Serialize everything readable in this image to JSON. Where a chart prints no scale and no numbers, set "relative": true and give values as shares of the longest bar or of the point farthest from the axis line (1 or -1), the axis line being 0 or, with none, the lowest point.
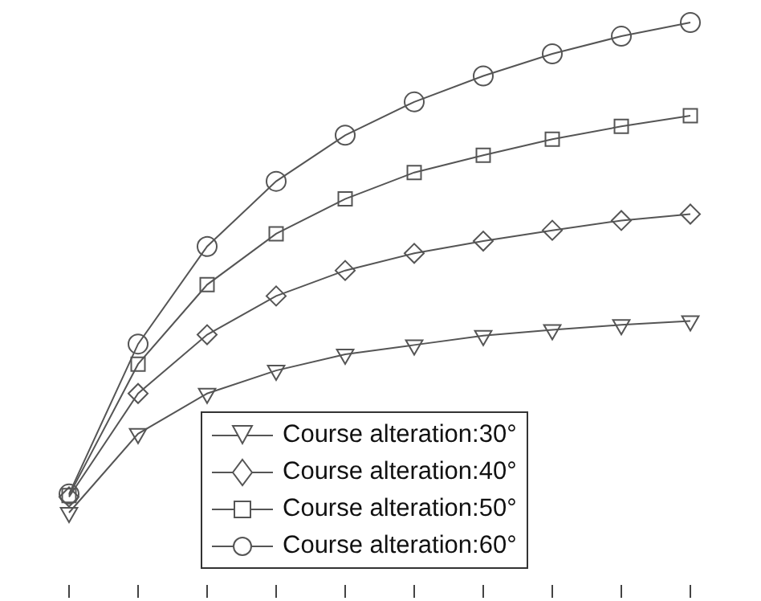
{
  "chart_data": {
    "type": "line",
    "relative": true,
    "categories": [
      null,
      null,
      null,
      null,
      null,
      null,
      null,
      null,
      null,
      null
    ],
    "series": [
      {
        "name": "Course alteration:30°",
        "color": "#555555",
        "marker": "triangle",
        "values": [
          0,
          0.161,
          0.243,
          0.29,
          0.323,
          0.342,
          0.361,
          0.373,
          0.383,
          0.391
        ]
      },
      {
        "name": "Course alteration:40°",
        "color": "#555555",
        "marker": "diamond",
        "values": [
          0.032,
          0.243,
          0.363,
          0.442,
          0.494,
          0.529,
          0.554,
          0.576,
          0.596,
          0.609
        ]
      },
      {
        "name": "Course alteration:50°",
        "color": "#555555",
        "marker": "square",
        "values": [
          0.035,
          0.303,
          0.465,
          0.569,
          0.64,
          0.694,
          0.729,
          0.762,
          0.788,
          0.81
        ]
      },
      {
        "name": "Course alteration:60°",
        "color": "#555555",
        "marker": "circle",
        "values": [
          0.038,
          0.344,
          0.543,
          0.676,
          0.77,
          0.838,
          0.891,
          0.936,
          0.972,
          1
        ]
      }
    ],
    "legend": "bottom"
  }
}
